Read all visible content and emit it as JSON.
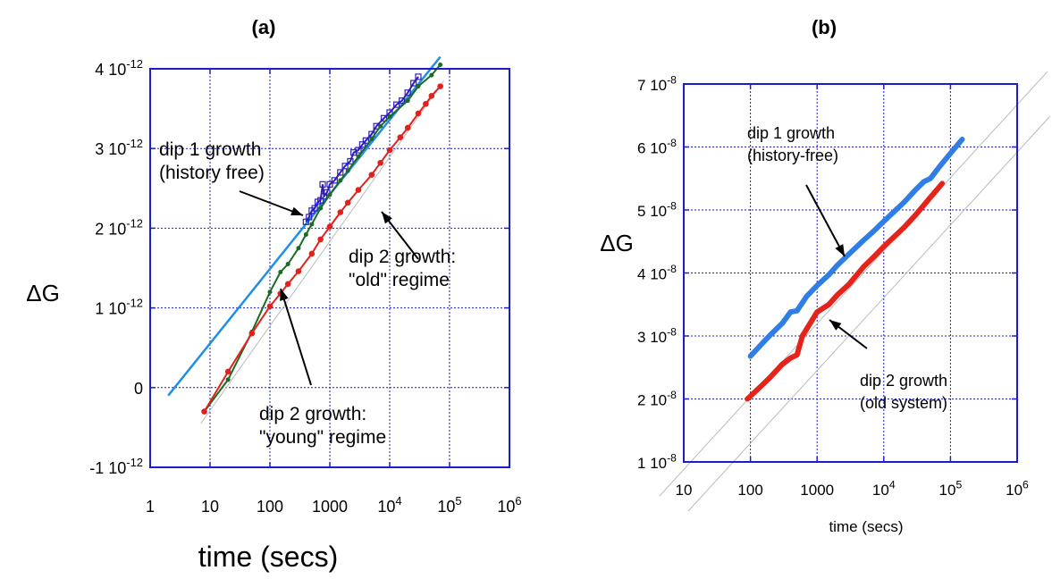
{
  "chart_data": [
    {
      "panel_label": "(a)",
      "type": "line",
      "xscale": "log",
      "xlim": [
        1,
        1000000
      ],
      "ylim": [
        -1e-12,
        4e-12
      ],
      "xlabel": "time (secs)",
      "ylabel": "ΔG",
      "grid": true,
      "xtick_labels": [
        {
          "main": "1"
        },
        {
          "main": "10"
        },
        {
          "main": "100"
        },
        {
          "main": "1000"
        },
        {
          "main": "10",
          "exp": "4"
        },
        {
          "main": "10",
          "exp": "5"
        },
        {
          "main": "10",
          "exp": "6"
        }
      ],
      "ytick_labels": [
        {
          "main": "-1 10",
          "exp": "-12"
        },
        {
          "main": "0"
        },
        {
          "main": "1 10",
          "exp": "-12"
        },
        {
          "main": "2 10",
          "exp": "-12"
        },
        {
          "main": "3 10",
          "exp": "-12"
        },
        {
          "main": "4 10",
          "exp": "-12"
        }
      ],
      "series": [
        {
          "color": "#1f8fe6",
          "x": [
            2,
            70000
          ],
          "y": [
            -1e-13,
            4.15e-12
          ]
        },
        {
          "color": "#2f1fb8",
          "x": [
            400,
            450,
            500,
            560,
            630,
            700,
            760,
            800,
            900,
            1000,
            1200,
            1500,
            1800,
            2200,
            2500,
            3000,
            3500,
            4000,
            5000,
            6000,
            8000,
            10000,
            13000,
            16000,
            20000,
            25000,
            30000
          ],
          "y": [
            2.08e-12,
            2.14e-12,
            2.22e-12,
            2.25e-12,
            2.33e-12,
            2.35e-12,
            2.55e-12,
            2.4e-12,
            2.45e-12,
            2.55e-12,
            2.6e-12,
            2.7e-12,
            2.78e-12,
            2.84e-12,
            2.95e-12,
            2.98e-12,
            3.05e-12,
            3.1e-12,
            3.18e-12,
            3.28e-12,
            3.38e-12,
            3.45e-12,
            3.55e-12,
            3.6e-12,
            3.7e-12,
            3.82e-12,
            3.9e-12
          ]
        },
        {
          "color": "#1e6a25",
          "x": [
            8,
            20,
            50,
            100,
            150,
            200,
            300,
            400,
            500,
            700,
            1000,
            1500,
            2000,
            3000,
            5000,
            7000,
            10000,
            20000,
            30000,
            50000,
            70000
          ],
          "y": [
            -3e-13,
            1e-13,
            7e-13,
            1.2e-12,
            1.45e-12,
            1.55e-12,
            1.75e-12,
            1.92e-12,
            2.05e-12,
            2.25e-12,
            2.42e-12,
            2.6e-12,
            2.72e-12,
            2.9e-12,
            3.12e-12,
            3.28e-12,
            3.4e-12,
            3.6e-12,
            3.78e-12,
            3.92e-12,
            4.05e-12
          ]
        },
        {
          "color": "#e0221c",
          "x": [
            8,
            20,
            50,
            100,
            150,
            200,
            300,
            500,
            700,
            1000,
            1500,
            2000,
            3000,
            5000,
            7000,
            10000,
            15000,
            20000,
            30000,
            40000,
            50000,
            70000
          ],
          "y": [
            -3e-13,
            2e-13,
            6.8e-13,
            1.02e-12,
            1.18e-12,
            1.3e-12,
            1.46e-12,
            1.68e-12,
            1.86e-12,
            2.02e-12,
            2.2e-12,
            2.32e-12,
            2.48e-12,
            2.67e-12,
            2.82e-12,
            2.98e-12,
            3.14e-12,
            3.26e-12,
            3.44e-12,
            3.56e-12,
            3.66e-12,
            3.78e-12
          ]
        }
      ],
      "annotations": [
        {
          "lines": [
            "dip 1 growth",
            "(history free)"
          ]
        },
        {
          "lines": [
            "dip 2 growth:",
            "\"old\" regime"
          ]
        },
        {
          "lines": [
            "dip 2 growth:",
            "\"young\" regime"
          ]
        }
      ]
    },
    {
      "panel_label": "(b)",
      "type": "line",
      "xscale": "log",
      "xlim": [
        10,
        1000000
      ],
      "ylim": [
        1e-08,
        7e-08
      ],
      "xlabel": "time (secs)",
      "ylabel": "ΔG",
      "grid": true,
      "xtick_labels": [
        {
          "main": "10"
        },
        {
          "main": "100"
        },
        {
          "main": "1000"
        },
        {
          "main": "10",
          "exp": "4"
        },
        {
          "main": "10",
          "exp": "5"
        },
        {
          "main": "10",
          "exp": "6"
        }
      ],
      "ytick_labels": [
        {
          "main": "1 10",
          "exp": "-8"
        },
        {
          "main": "2 10",
          "exp": "-8"
        },
        {
          "main": "3 10",
          "exp": "-8"
        },
        {
          "main": "4 10",
          "exp": "-8"
        },
        {
          "main": "5 10",
          "exp": "-8"
        },
        {
          "main": "6 10",
          "exp": "-8"
        },
        {
          "main": "7 10",
          "exp": "-8"
        }
      ],
      "series": [
        {
          "color": "#2f7ee6",
          "x": [
            100,
            150,
            200,
            300,
            400,
            500,
            700,
            1000,
            1500,
            2000,
            3000,
            5000,
            7000,
            10000,
            20000,
            30000,
            40000,
            50000,
            70000,
            100000,
            150000
          ],
          "y": [
            2.68e-08,
            2.88e-08,
            3.02e-08,
            3.2e-08,
            3.38e-08,
            3.4e-08,
            3.63e-08,
            3.8e-08,
            3.97e-08,
            4.12e-08,
            4.3e-08,
            4.52e-08,
            4.66e-08,
            4.82e-08,
            5.12e-08,
            5.32e-08,
            5.45e-08,
            5.5e-08,
            5.7e-08,
            5.9e-08,
            6.12e-08
          ]
        },
        {
          "color": "#e5231b",
          "x": [
            90,
            150,
            200,
            300,
            400,
            500,
            600,
            1000,
            1500,
            2000,
            3000,
            5000,
            7000,
            10000,
            20000,
            30000,
            50000,
            75000
          ],
          "y": [
            2e-08,
            2.22e-08,
            2.35e-08,
            2.55e-08,
            2.65e-08,
            2.7e-08,
            3e-08,
            3.38e-08,
            3.5e-08,
            3.65e-08,
            3.82e-08,
            4.1e-08,
            4.25e-08,
            4.42e-08,
            4.72e-08,
            4.92e-08,
            5.2e-08,
            5.42e-08
          ]
        }
      ],
      "annotations": [
        {
          "lines": [
            "dip 1 growth",
            "(history-free)"
          ]
        },
        {
          "lines": [
            "dip 2 growth",
            "(old system)"
          ]
        }
      ]
    }
  ]
}
